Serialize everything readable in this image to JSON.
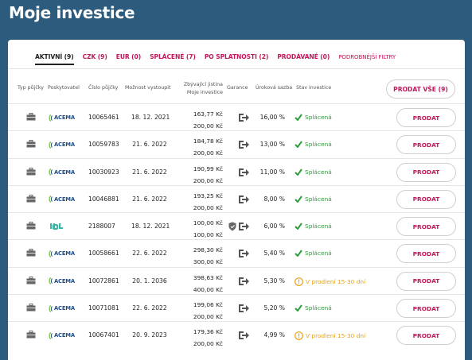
{
  "page": {
    "title": "Moje investice"
  },
  "tabs": [
    {
      "label": "AKTIVNÍ (9)",
      "active": true
    },
    {
      "label": "CZK (9)"
    },
    {
      "label": "EUR (0)"
    },
    {
      "label": "SPLÁCENÉ (7)"
    },
    {
      "label": "PO SPLATNOSTI (2)"
    },
    {
      "label": "PRODÁVANÉ (0)"
    }
  ],
  "filter_label": "PODROBNĚJŠÍ FILTRY",
  "table": {
    "headers": {
      "type": "Typ půjčky",
      "provider": "Poskytovatel",
      "number": "Číslo půjčky",
      "exit": "Možnost vystoupit",
      "principal_line1": "Zbývající jistina",
      "principal_line2": "Moje investice",
      "guarantee": "Garance",
      "rate": "Úroková sazba",
      "status": "Stav investice"
    },
    "sell_all_label": "PRODAT VŠE (9)",
    "sell_label": "PRODAT",
    "rows": [
      {
        "provider": "ACEMA",
        "number": "10065461",
        "date": "18. 12. 2021",
        "remaining": "163,77 Kč",
        "investment": "200,00 Kč",
        "shield": false,
        "rate": "16,00 %",
        "status": "Splácená",
        "status_type": "ok"
      },
      {
        "provider": "ACEMA",
        "number": "10059783",
        "date": "21. 6. 2022",
        "remaining": "184,78 Kč",
        "investment": "200,00 Kč",
        "shield": false,
        "rate": "13,00 %",
        "status": "Splácená",
        "status_type": "ok"
      },
      {
        "provider": "ACEMA",
        "number": "10030923",
        "date": "21. 6. 2022",
        "remaining": "190,99 Kč",
        "investment": "200,00 Kč",
        "shield": false,
        "rate": "11,00 %",
        "status": "Splácená",
        "status_type": "ok"
      },
      {
        "provider": "ACEMA",
        "number": "10046881",
        "date": "21. 6. 2022",
        "remaining": "193,25 Kč",
        "investment": "200,00 Kč",
        "shield": false,
        "rate": "8,00 %",
        "status": "Splácená",
        "status_type": "ok"
      },
      {
        "provider": "IBL",
        "number": "2188007",
        "date": "18. 12. 2021",
        "remaining": "100,00 Kč",
        "investment": "100,00 Kč",
        "shield": true,
        "rate": "6,00 %",
        "status": "Splácená",
        "status_type": "ok"
      },
      {
        "provider": "ACEMA",
        "number": "10058661",
        "date": "22. 6. 2022",
        "remaining": "298,30 Kč",
        "investment": "300,00 Kč",
        "shield": false,
        "rate": "5,40 %",
        "status": "Splácená",
        "status_type": "ok"
      },
      {
        "provider": "ACEMA",
        "number": "10072861",
        "date": "20. 1. 2036",
        "remaining": "398,63 Kč",
        "investment": "400,00 Kč",
        "shield": false,
        "rate": "5,30 %",
        "status": "V prodlení 15-30 dní",
        "status_type": "late"
      },
      {
        "provider": "ACEMA",
        "number": "10071081",
        "date": "22. 6. 2022",
        "remaining": "199,06 Kč",
        "investment": "200,00 Kč",
        "shield": false,
        "rate": "5,20 %",
        "status": "Splácená",
        "status_type": "ok"
      },
      {
        "provider": "ACEMA",
        "number": "10067401",
        "date": "20. 9. 2023",
        "remaining": "179,36 Kč",
        "investment": "200,00 Kč",
        "shield": false,
        "rate": "4,99 %",
        "status": "V prodlení 15-30 dní",
        "status_type": "late"
      }
    ]
  },
  "colors": {
    "background": "#2c5b7e",
    "accent": "#c2185b",
    "ok": "#2e9d3b",
    "late": "#e8a317"
  },
  "icons": {
    "type": "briefcase-icon",
    "guarantee": "buyback-arrow-icon",
    "shield": "shield-icon",
    "ok": "check-icon",
    "late": "warning-circle-icon"
  }
}
